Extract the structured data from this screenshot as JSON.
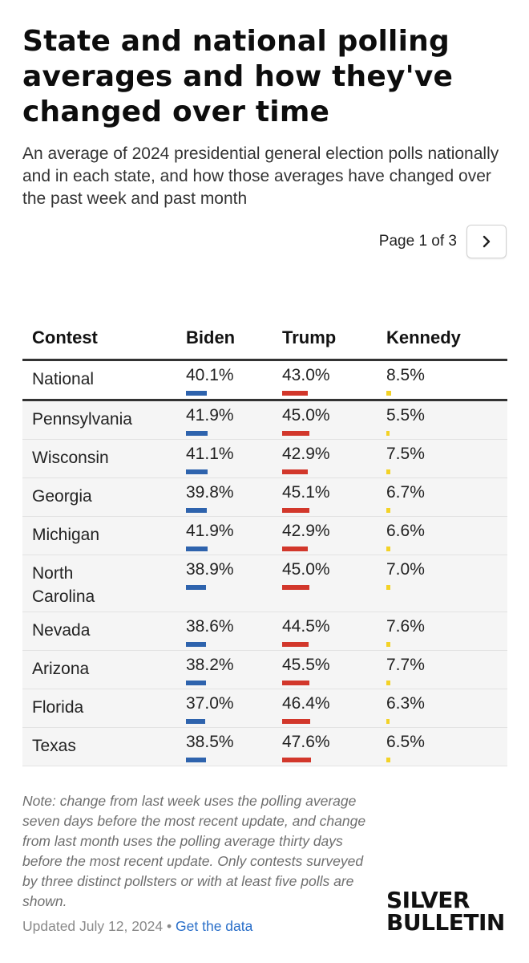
{
  "header": {
    "title": "State and national polling averages and how they've changed over time",
    "subtitle": "An average of 2024 presidential general election polls nationally and in each state, and how those averages have changed over the past week and past month"
  },
  "pager": {
    "label": "Page 1 of 3",
    "next_icon": "chevron-right-icon"
  },
  "colors": {
    "biden": "#2e63ad",
    "trump": "#d2372b",
    "kennedy": "#f3d226"
  },
  "chart_data": {
    "type": "table",
    "title": "State and national polling averages and how they've changed over time",
    "columns": [
      "Contest",
      "Biden",
      "Trump",
      "Kennedy"
    ],
    "rows": [
      {
        "contest": "National",
        "biden": "40.1%",
        "trump": "43.0%",
        "kennedy": "8.5%",
        "biden_value": 40.1,
        "trump_value": 43.0,
        "kennedy_value": 8.5
      },
      {
        "contest": "Pennsylvania",
        "biden": "41.9%",
        "trump": "45.0%",
        "kennedy": "5.5%",
        "biden_value": 41.9,
        "trump_value": 45.0,
        "kennedy_value": 5.5
      },
      {
        "contest": "Wisconsin",
        "biden": "41.1%",
        "trump": "42.9%",
        "kennedy": "7.5%",
        "biden_value": 41.1,
        "trump_value": 42.9,
        "kennedy_value": 7.5
      },
      {
        "contest": "Georgia",
        "biden": "39.8%",
        "trump": "45.1%",
        "kennedy": "6.7%",
        "biden_value": 39.8,
        "trump_value": 45.1,
        "kennedy_value": 6.7
      },
      {
        "contest": "Michigan",
        "biden": "41.9%",
        "trump": "42.9%",
        "kennedy": "6.6%",
        "biden_value": 41.9,
        "trump_value": 42.9,
        "kennedy_value": 6.6
      },
      {
        "contest": "North Carolina",
        "biden": "38.9%",
        "trump": "45.0%",
        "kennedy": "7.0%",
        "biden_value": 38.9,
        "trump_value": 45.0,
        "kennedy_value": 7.0
      },
      {
        "contest": "Nevada",
        "biden": "38.6%",
        "trump": "44.5%",
        "kennedy": "7.6%",
        "biden_value": 38.6,
        "trump_value": 44.5,
        "kennedy_value": 7.6
      },
      {
        "contest": "Arizona",
        "biden": "38.2%",
        "trump": "45.5%",
        "kennedy": "7.7%",
        "biden_value": 38.2,
        "trump_value": 45.5,
        "kennedy_value": 7.7
      },
      {
        "contest": "Florida",
        "biden": "37.0%",
        "trump": "46.4%",
        "kennedy": "6.3%",
        "biden_value": 37.0,
        "trump_value": 46.4,
        "kennedy_value": 6.3
      },
      {
        "contest": "Texas",
        "biden": "38.5%",
        "trump": "47.6%",
        "kennedy": "6.5%",
        "biden_value": 38.5,
        "trump_value": 47.6,
        "kennedy_value": 6.5
      }
    ]
  },
  "note": "Note: change from last week uses the polling average seven days before the most recent update, and change from last month uses the polling average thirty days before the most recent update. Only contests surveyed by three distinct pollsters or with at least five polls are shown.",
  "footer": {
    "updated": "Updated July 12, 2024",
    "separator": "•",
    "link": "Get the data"
  },
  "logo": {
    "line1": "SILVER",
    "line2": "BULLETIN"
  }
}
